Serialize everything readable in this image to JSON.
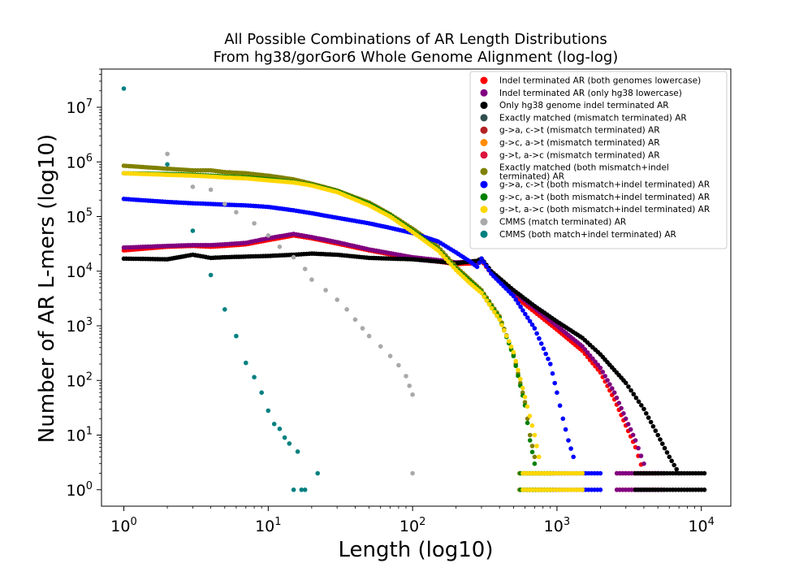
{
  "chart_data": {
    "type": "scatter",
    "title": [
      "All Possible Combinations of AR Length Distributions",
      "From hg38/gorGor6 Whole Genome Alignment (log-log)"
    ],
    "xlabel": "Length (log10)",
    "ylabel": "Number of AR L-mers (log10)",
    "xscale": "log",
    "yscale": "log",
    "xlim": [
      0.7,
      16000
    ],
    "ylim": [
      0.5,
      50000000
    ],
    "x_ticks": [
      {
        "value": 1,
        "label": "10^0"
      },
      {
        "value": 10,
        "label": "10^1"
      },
      {
        "value": 100,
        "label": "10^2"
      },
      {
        "value": 1000,
        "label": "10^3"
      },
      {
        "value": 10000,
        "label": "10^4"
      }
    ],
    "y_ticks": [
      {
        "value": 1,
        "label": "10^0"
      },
      {
        "value": 10,
        "label": "10^1"
      },
      {
        "value": 100,
        "label": "10^2"
      },
      {
        "value": 1000,
        "label": "10^3"
      },
      {
        "value": 10000,
        "label": "10^4"
      },
      {
        "value": 100000,
        "label": "10^5"
      },
      {
        "value": 1000000,
        "label": "10^6"
      },
      {
        "value": 10000000,
        "label": "10^7"
      }
    ],
    "legend_position": "top-right",
    "series": [
      {
        "name": "Indel terminated AR (both genomes lowercase)",
        "color": "#ff0000",
        "points": [
          [
            1,
            24000
          ],
          [
            2,
            28000
          ],
          [
            3,
            29000
          ],
          [
            4,
            28000
          ],
          [
            5,
            29000
          ],
          [
            7,
            31000
          ],
          [
            10,
            37000
          ],
          [
            15,
            45000
          ],
          [
            20,
            40000
          ],
          [
            30,
            32000
          ],
          [
            50,
            24000
          ],
          [
            100,
            17000
          ],
          [
            150,
            15000
          ],
          [
            200,
            13500
          ],
          [
            280,
            14000
          ],
          [
            300,
            16000
          ],
          [
            350,
            9000
          ],
          [
            500,
            3600
          ],
          [
            700,
            1800
          ],
          [
            1000,
            850
          ],
          [
            1500,
            350
          ],
          [
            2000,
            140
          ],
          [
            2500,
            45
          ],
          [
            3000,
            15
          ],
          [
            3500,
            6
          ],
          [
            4000,
            2
          ]
        ],
        "tail": {
          "xmin": 2600,
          "xmax": 5000
        }
      },
      {
        "name": "Indel terminated AR (only hg38 lowercase)",
        "color": "#800080",
        "points": [
          [
            1,
            27000
          ],
          [
            2,
            29000
          ],
          [
            3,
            30000
          ],
          [
            4,
            30000
          ],
          [
            5,
            31000
          ],
          [
            7,
            33000
          ],
          [
            10,
            40000
          ],
          [
            15,
            48000
          ],
          [
            20,
            42000
          ],
          [
            30,
            34000
          ],
          [
            50,
            25000
          ],
          [
            100,
            18000
          ],
          [
            150,
            16000
          ],
          [
            200,
            14500
          ],
          [
            280,
            15000
          ],
          [
            300,
            17000
          ],
          [
            350,
            10000
          ],
          [
            500,
            4200
          ],
          [
            700,
            2100
          ],
          [
            1000,
            1000
          ],
          [
            1500,
            420
          ],
          [
            2000,
            170
          ],
          [
            2500,
            60
          ],
          [
            3000,
            20
          ],
          [
            3500,
            8
          ],
          [
            4000,
            3
          ]
        ],
        "tail": {
          "xmin": 2600,
          "xmax": 5500
        }
      },
      {
        "name": "Only hg38 genome indel terminated AR",
        "color": "#000000",
        "points": [
          [
            1,
            17000
          ],
          [
            2,
            16500
          ],
          [
            3,
            20000
          ],
          [
            4,
            17500
          ],
          [
            5,
            18000
          ],
          [
            7,
            18500
          ],
          [
            10,
            19000
          ],
          [
            15,
            20000
          ],
          [
            20,
            21000
          ],
          [
            30,
            20000
          ],
          [
            50,
            17500
          ],
          [
            100,
            16500
          ],
          [
            150,
            15000
          ],
          [
            200,
            14000
          ],
          [
            280,
            15500
          ],
          [
            300,
            17000
          ],
          [
            350,
            10000
          ],
          [
            500,
            4500
          ],
          [
            700,
            2300
          ],
          [
            1000,
            1200
          ],
          [
            1500,
            600
          ],
          [
            2000,
            300
          ],
          [
            3000,
            90
          ],
          [
            4000,
            30
          ],
          [
            5000,
            10
          ],
          [
            6000,
            4
          ],
          [
            7000,
            2
          ]
        ],
        "tail": {
          "xmin": 3500,
          "xmax": 10500
        }
      },
      {
        "name": "Exactly matched (mismatch terminated) AR",
        "color": "#2f4f4f",
        "points": []
      },
      {
        "name": "g->a, c->t (mismatch terminated) AR",
        "color": "#b22222",
        "points": []
      },
      {
        "name": "g->c, a->t (mismatch terminated) AR",
        "color": "#ff8c00",
        "points": []
      },
      {
        "name": "g->t, a->c (mismatch terminated) AR",
        "color": "#dc143c",
        "points": []
      },
      {
        "name": "Exactly matched (both mismatch+indel terminated) AR",
        "color": "#808000",
        "points": [
          [
            1,
            850000
          ],
          [
            2,
            750000
          ],
          [
            3,
            700000
          ],
          [
            4,
            700000
          ],
          [
            5,
            650000
          ],
          [
            7,
            620000
          ],
          [
            10,
            560000
          ],
          [
            15,
            480000
          ],
          [
            20,
            400000
          ],
          [
            30,
            300000
          ],
          [
            50,
            180000
          ],
          [
            70,
            110000
          ],
          [
            100,
            60000
          ],
          [
            150,
            28000
          ],
          [
            200,
            12000
          ],
          [
            250,
            7000
          ],
          [
            300,
            4500
          ],
          [
            400,
            1500
          ],
          [
            500,
            300
          ],
          [
            600,
            40
          ],
          [
            650,
            10
          ],
          [
            700,
            4
          ]
        ],
        "tail": {
          "xmin": 550,
          "xmax": 950
        }
      },
      {
        "name": "g->a, c->t (both mismatch+indel terminated) AR",
        "color": "#0000ff",
        "points": [
          [
            1,
            210000
          ],
          [
            2,
            185000
          ],
          [
            3,
            175000
          ],
          [
            4,
            170000
          ],
          [
            5,
            165000
          ],
          [
            7,
            160000
          ],
          [
            10,
            150000
          ],
          [
            15,
            130000
          ],
          [
            20,
            115000
          ],
          [
            30,
            95000
          ],
          [
            50,
            75000
          ],
          [
            70,
            62000
          ],
          [
            100,
            50000
          ],
          [
            150,
            35000
          ],
          [
            200,
            22000
          ],
          [
            250,
            15000
          ],
          [
            280,
            12000
          ],
          [
            300,
            17000
          ],
          [
            350,
            9000
          ],
          [
            500,
            3500
          ],
          [
            700,
            900
          ],
          [
            900,
            200
          ],
          [
            1000,
            60
          ],
          [
            1100,
            20
          ],
          [
            1200,
            8
          ],
          [
            1300,
            4
          ]
        ],
        "tail": {
          "xmin": 900,
          "xmax": 2000
        }
      },
      {
        "name": "g->c, a->t (both mismatch+indel terminated) AR",
        "color": "#008000",
        "points": [
          [
            1,
            620000
          ],
          [
            2,
            600000
          ],
          [
            3,
            580000
          ],
          [
            4,
            560000
          ],
          [
            5,
            540000
          ],
          [
            7,
            520000
          ],
          [
            10,
            480000
          ],
          [
            15,
            430000
          ],
          [
            20,
            380000
          ],
          [
            30,
            290000
          ],
          [
            50,
            170000
          ],
          [
            70,
            105000
          ],
          [
            100,
            55000
          ],
          [
            150,
            25000
          ],
          [
            200,
            11000
          ],
          [
            250,
            6500
          ],
          [
            300,
            4200
          ],
          [
            400,
            1400
          ],
          [
            500,
            280
          ],
          [
            600,
            35
          ],
          [
            650,
            8
          ],
          [
            700,
            3
          ]
        ],
        "tail": {
          "xmin": 560,
          "xmax": 900
        }
      },
      {
        "name": "g->t, a->c (both mismatch+indel terminated) AR",
        "color": "#ffd700",
        "points": [
          [
            1,
            620000
          ],
          [
            2,
            580000
          ],
          [
            3,
            560000
          ],
          [
            4,
            540000
          ],
          [
            5,
            520000
          ],
          [
            7,
            500000
          ],
          [
            10,
            460000
          ],
          [
            15,
            420000
          ],
          [
            20,
            370000
          ],
          [
            30,
            280000
          ],
          [
            50,
            160000
          ],
          [
            70,
            100000
          ],
          [
            100,
            52000
          ],
          [
            150,
            24000
          ],
          [
            200,
            10500
          ],
          [
            250,
            6000
          ],
          [
            300,
            4000
          ],
          [
            400,
            1300
          ],
          [
            500,
            330
          ],
          [
            600,
            50
          ],
          [
            700,
            10
          ],
          [
            750,
            4
          ]
        ],
        "tail": {
          "xmin": 580,
          "xmax": 1500
        }
      },
      {
        "name": "CMMS (match terminated) AR",
        "color": "#a9a9a9",
        "points": [
          [
            2,
            1400000
          ],
          [
            3,
            350000
          ],
          [
            4,
            310000
          ],
          [
            5,
            170000
          ],
          [
            6,
            120000
          ],
          [
            8,
            75000
          ],
          [
            10,
            45000
          ],
          [
            12,
            28000
          ],
          [
            15,
            18000
          ],
          [
            18,
            11000
          ],
          [
            20,
            7000
          ],
          [
            25,
            4500
          ],
          [
            30,
            3000
          ],
          [
            35,
            2000
          ],
          [
            40,
            1300
          ],
          [
            45,
            900
          ],
          [
            50,
            650
          ],
          [
            60,
            420
          ],
          [
            70,
            280
          ],
          [
            80,
            190
          ],
          [
            90,
            120
          ],
          [
            95,
            80
          ],
          [
            100,
            55
          ],
          [
            100,
            2
          ]
        ]
      },
      {
        "name": "CMMS (both match+indel terminated) AR",
        "color": "#008080",
        "points": [
          [
            1,
            22000000
          ],
          [
            2,
            900000
          ],
          [
            3,
            55000
          ],
          [
            4,
            8500
          ],
          [
            5,
            2000
          ],
          [
            6,
            650
          ],
          [
            7,
            210
          ],
          [
            8,
            115
          ],
          [
            9,
            60
          ],
          [
            10,
            28
          ],
          [
            11,
            16
          ],
          [
            12,
            13
          ],
          [
            13,
            9
          ],
          [
            14,
            7
          ],
          [
            16,
            5
          ],
          [
            22,
            2
          ],
          [
            15,
            1
          ],
          [
            17,
            1
          ],
          [
            18,
            1
          ]
        ]
      }
    ]
  }
}
